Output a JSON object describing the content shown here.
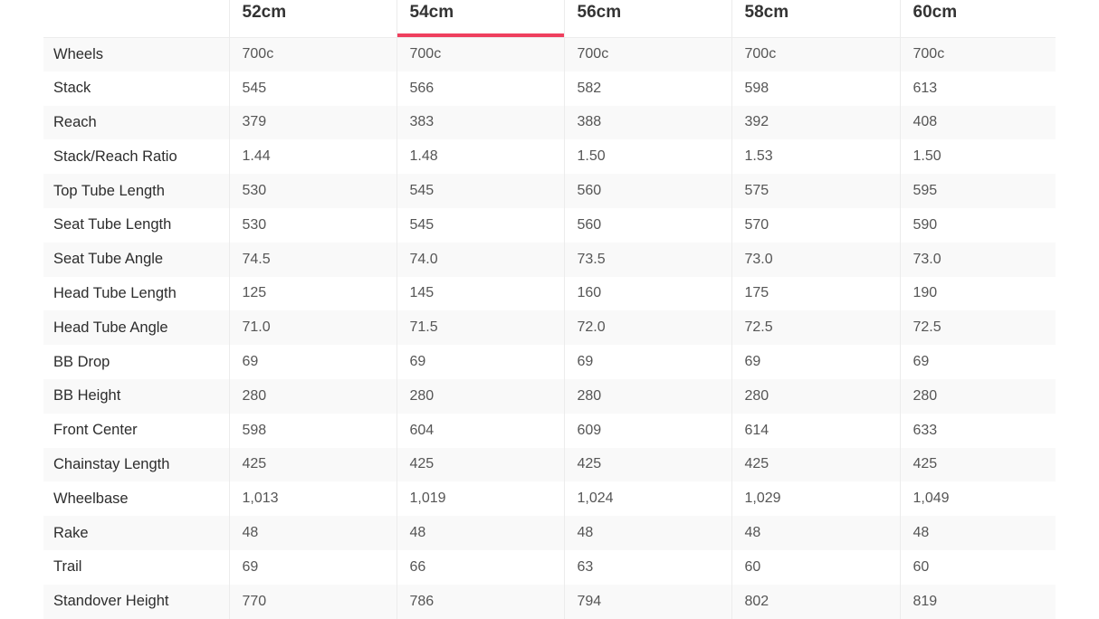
{
  "accent_color": "#ef3f5e",
  "active_size_index": 1,
  "sizes": [
    "52cm",
    "54cm",
    "56cm",
    "58cm",
    "60cm"
  ],
  "rows": [
    {
      "label": "Wheels",
      "values": [
        "700c",
        "700c",
        "700c",
        "700c",
        "700c"
      ]
    },
    {
      "label": "Stack",
      "values": [
        "545",
        "566",
        "582",
        "598",
        "613"
      ]
    },
    {
      "label": "Reach",
      "values": [
        "379",
        "383",
        "388",
        "392",
        "408"
      ]
    },
    {
      "label": "Stack/Reach Ratio",
      "values": [
        "1.44",
        "1.48",
        "1.50",
        "1.53",
        "1.50"
      ]
    },
    {
      "label": "Top Tube Length",
      "values": [
        "530",
        "545",
        "560",
        "575",
        "595"
      ]
    },
    {
      "label": "Seat Tube Length",
      "values": [
        "530",
        "545",
        "560",
        "570",
        "590"
      ]
    },
    {
      "label": "Seat Tube Angle",
      "values": [
        "74.5",
        "74.0",
        "73.5",
        "73.0",
        "73.0"
      ]
    },
    {
      "label": "Head Tube Length",
      "values": [
        "125",
        "145",
        "160",
        "175",
        "190"
      ]
    },
    {
      "label": "Head Tube Angle",
      "values": [
        "71.0",
        "71.5",
        "72.0",
        "72.5",
        "72.5"
      ]
    },
    {
      "label": "BB Drop",
      "values": [
        "69",
        "69",
        "69",
        "69",
        "69"
      ]
    },
    {
      "label": "BB Height",
      "values": [
        "280",
        "280",
        "280",
        "280",
        "280"
      ]
    },
    {
      "label": "Front Center",
      "values": [
        "598",
        "604",
        "609",
        "614",
        "633"
      ]
    },
    {
      "label": "Chainstay Length",
      "values": [
        "425",
        "425",
        "425",
        "425",
        "425"
      ]
    },
    {
      "label": "Wheelbase",
      "values": [
        "1,013",
        "1,019",
        "1,024",
        "1,029",
        "1,049"
      ]
    },
    {
      "label": "Rake",
      "values": [
        "48",
        "48",
        "48",
        "48",
        "48"
      ]
    },
    {
      "label": "Trail",
      "values": [
        "69",
        "66",
        "63",
        "60",
        "60"
      ]
    },
    {
      "label": "Standover Height",
      "values": [
        "770",
        "786",
        "794",
        "802",
        "819"
      ]
    }
  ]
}
